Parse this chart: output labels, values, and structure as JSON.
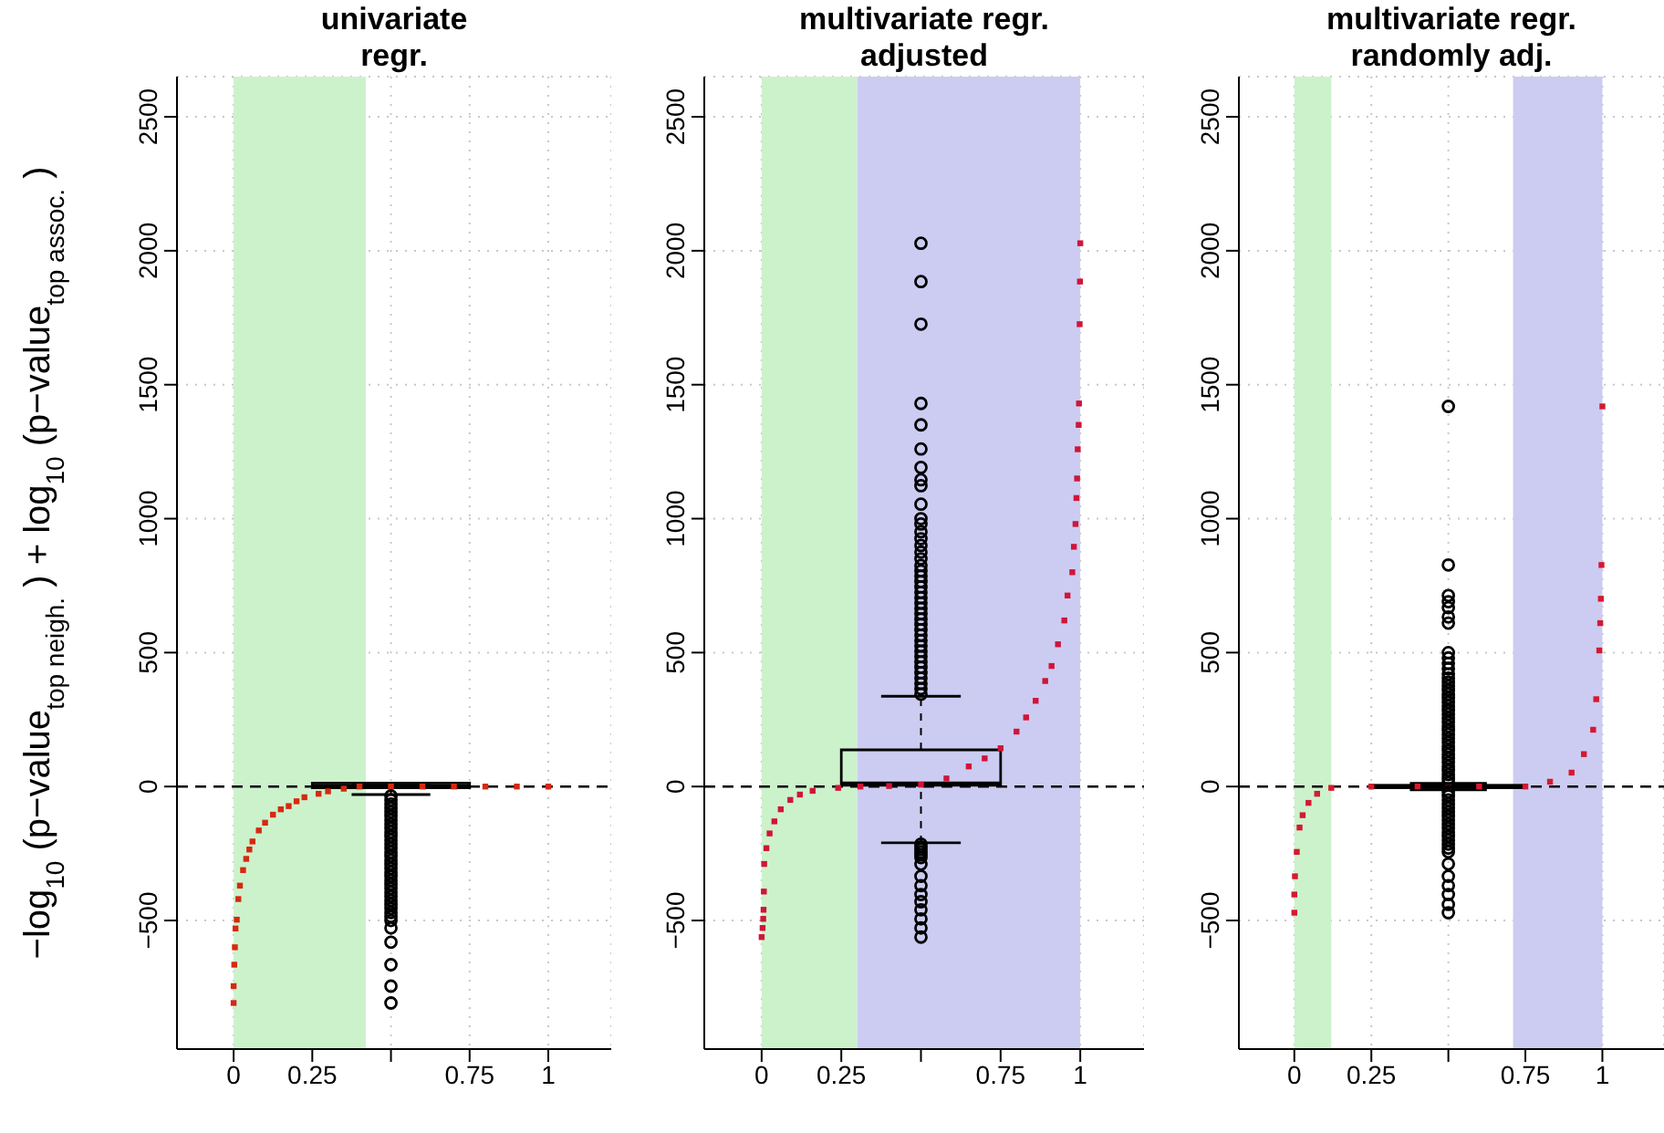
{
  "chart_data": [
    {
      "type": "scatter",
      "title": "univariate\nregr.",
      "ylabel": "−log$_{10}$ (p−value$_{top neigh.}$ ) + log$_{10}$ (p−value$_{top assoc.}$ )",
      "xlim": [
        -0.18,
        1.2
      ],
      "ylim": [
        -980,
        2650
      ],
      "xticks": [
        0,
        0.25,
        0.75,
        1
      ],
      "yticks": [
        -500,
        0,
        500,
        1000,
        1500,
        2000,
        2500
      ],
      "grid": true,
      "bands": [
        {
          "axis": "x",
          "from": 0,
          "to": 0.42,
          "color": "#ccf2cc"
        }
      ],
      "ref_lines": [
        {
          "axis": "y",
          "value": 0,
          "color": "#000000",
          "line_style": "dashed"
        }
      ],
      "series": [
        {
          "marker": "square",
          "color": "#d42a10",
          "x": [
            0,
            0,
            0.002,
            0.004,
            0.006,
            0.01,
            0.015,
            0.02,
            0.03,
            0.04,
            0.05,
            0.06,
            0.08,
            0.1,
            0.125,
            0.15,
            0.175,
            0.2,
            0.225,
            0.27,
            0.3,
            0.35,
            0.4,
            0.5,
            0.6,
            0.7,
            0.8,
            0.9,
            1
          ],
          "values": [
            -808,
            -745,
            -665,
            -600,
            -530,
            -497,
            -420,
            -370,
            -312,
            -270,
            -235,
            -205,
            -164,
            -135,
            -105,
            -85,
            -73,
            -55,
            -40,
            -27,
            -18,
            -8,
            0,
            0,
            0,
            0,
            0,
            0,
            0
          ]
        },
        {
          "type": "box",
          "color": "#000000",
          "x": [
            0.5
          ],
          "boxes": [
            {
              "low": -30,
              "q1": -5,
              "median": 0,
              "q3": 13,
              "high": 13,
              "outliers": [
                -35,
                -50,
                -65,
                -80,
                -95,
                -110,
                -125,
                -140,
                -155,
                -170,
                -185,
                -200,
                -215,
                -230,
                -245,
                -260,
                -275,
                -290,
                -305,
                -320,
                -335,
                -350,
                -365,
                -380,
                -395,
                -410,
                -425,
                -440,
                -455,
                -470,
                -485,
                -500,
                -528,
                -581,
                -665,
                -745,
                -808
              ]
            }
          ]
        }
      ]
    },
    {
      "type": "scatter",
      "title": "multivariate regr.\nadjusted",
      "xlim": [
        -0.18,
        1.2
      ],
      "ylim": [
        -980,
        2650
      ],
      "xticks": [
        0,
        0.25,
        0.75,
        1
      ],
      "yticks": [
        -500,
        0,
        500,
        1000,
        1500,
        2000,
        2500
      ],
      "grid": true,
      "bands": [
        {
          "axis": "x",
          "from": 0,
          "to": 0.3,
          "color": "#ccf2cc"
        },
        {
          "axis": "x",
          "from": 0.3,
          "to": 1,
          "color": "#ccccf2"
        }
      ],
      "ref_lines": [
        {
          "axis": "y",
          "value": 0,
          "color": "#000000",
          "line_style": "dashed"
        }
      ],
      "series": [
        {
          "marker": "square",
          "color": "#d01538",
          "x": [
            0,
            0.003,
            0.005,
            0.006,
            0.007,
            0.008,
            0.015,
            0.025,
            0.04,
            0.06,
            0.09,
            0.12,
            0.16,
            0.24,
            0.31,
            0.4,
            0.5,
            0.58,
            0.65,
            0.7,
            0.75,
            0.8,
            0.83,
            0.86,
            0.89,
            0.91,
            0.93,
            0.95,
            0.96,
            0.975,
            0.98,
            0.985,
            0.988,
            0.99,
            0.992,
            0.995,
            0.996,
            0.998,
            0.999,
            1
          ],
          "values": [
            -562,
            -528,
            -494,
            -460,
            -392,
            -289,
            -230,
            -175,
            -130,
            -85,
            -50,
            -30,
            -16,
            -5,
            0,
            2,
            7,
            30,
            75,
            105,
            143,
            205,
            258,
            320,
            394,
            450,
            531,
            620,
            713,
            800,
            895,
            980,
            1077,
            1150,
            1259,
            1350,
            1430,
            1726,
            1885,
            2028
          ]
        },
        {
          "type": "box",
          "color": "#000000",
          "x": [
            0.5
          ],
          "boxes": [
            {
              "low": -210,
              "q1": 5,
              "median": 10,
              "q3": 137,
              "high": 337,
              "outliers": [
                345,
                365,
                385,
                405,
                425,
                445,
                465,
                485,
                505,
                525,
                545,
                565,
                585,
                605,
                625,
                645,
                665,
                685,
                705,
                725,
                745,
                765,
                785,
                805,
                825,
                850,
                875,
                900,
                925,
                951,
                980,
                1000,
                1054,
                1123,
                1145,
                1191,
                1260,
                1350,
                1430,
                1726,
                1885,
                2028,
                -215,
                -225,
                -235,
                -245,
                -255,
                -265,
                -290,
                -335,
                -370,
                -403,
                -430,
                -460,
                -494,
                -528,
                -562
              ]
            }
          ]
        }
      ]
    },
    {
      "type": "scatter",
      "title": "multivariate regr.\nrandomly adj.",
      "xlim": [
        -0.18,
        1.2
      ],
      "ylim": [
        -980,
        2650
      ],
      "xticks": [
        0,
        0.25,
        0.75,
        1
      ],
      "yticks": [
        -500,
        0,
        500,
        1000,
        1500,
        2000,
        2500
      ],
      "grid": true,
      "bands": [
        {
          "axis": "x",
          "from": 0,
          "to": 0.12,
          "color": "#ccf2cc"
        },
        {
          "axis": "x",
          "from": 0.71,
          "to": 1,
          "color": "#ccccf2"
        }
      ],
      "ref_lines": [
        {
          "axis": "y",
          "value": 0,
          "color": "#000000",
          "line_style": "dashed"
        }
      ],
      "series": [
        {
          "marker": "square",
          "color": "#d41a30",
          "x": [
            0,
            0,
            0.002,
            0.008,
            0.017,
            0.027,
            0.046,
            0.074,
            0.12,
            0.25,
            0.4,
            0.5,
            0.6,
            0.75,
            0.83,
            0.9,
            0.94,
            0.97,
            0.98,
            0.99,
            0.993,
            0.995,
            0.997,
            1
          ],
          "values": [
            -471,
            -403,
            -335,
            -244,
            -153,
            -107,
            -61,
            -27,
            -5,
            0,
            0,
            0,
            0,
            0,
            18,
            52,
            121,
            212,
            326,
            508,
            610,
            701,
            827,
            1419
          ]
        },
        {
          "type": "box",
          "color": "#000000",
          "x": [
            0.5
          ],
          "boxes": [
            {
              "low": -12,
              "q1": -4,
              "median": 0,
              "q3": 4,
              "high": 12,
              "outliers": [
                15,
                30,
                45,
                60,
                75,
                90,
                105,
                120,
                135,
                150,
                165,
                180,
                195,
                210,
                225,
                240,
                255,
                270,
                285,
                300,
                315,
                330,
                345,
                360,
                375,
                390,
                405,
                420,
                440,
                460,
                480,
                500,
                610,
                633,
                668,
                690,
                713,
                827,
                1419,
                -20,
                -35,
                -50,
                -65,
                -80,
                -95,
                -110,
                -125,
                -140,
                -155,
                -170,
                -185,
                -200,
                -215,
                -230,
                -244,
                -289,
                -335,
                -370,
                -403,
                -440,
                -471
              ]
            }
          ]
        }
      ]
    }
  ]
}
